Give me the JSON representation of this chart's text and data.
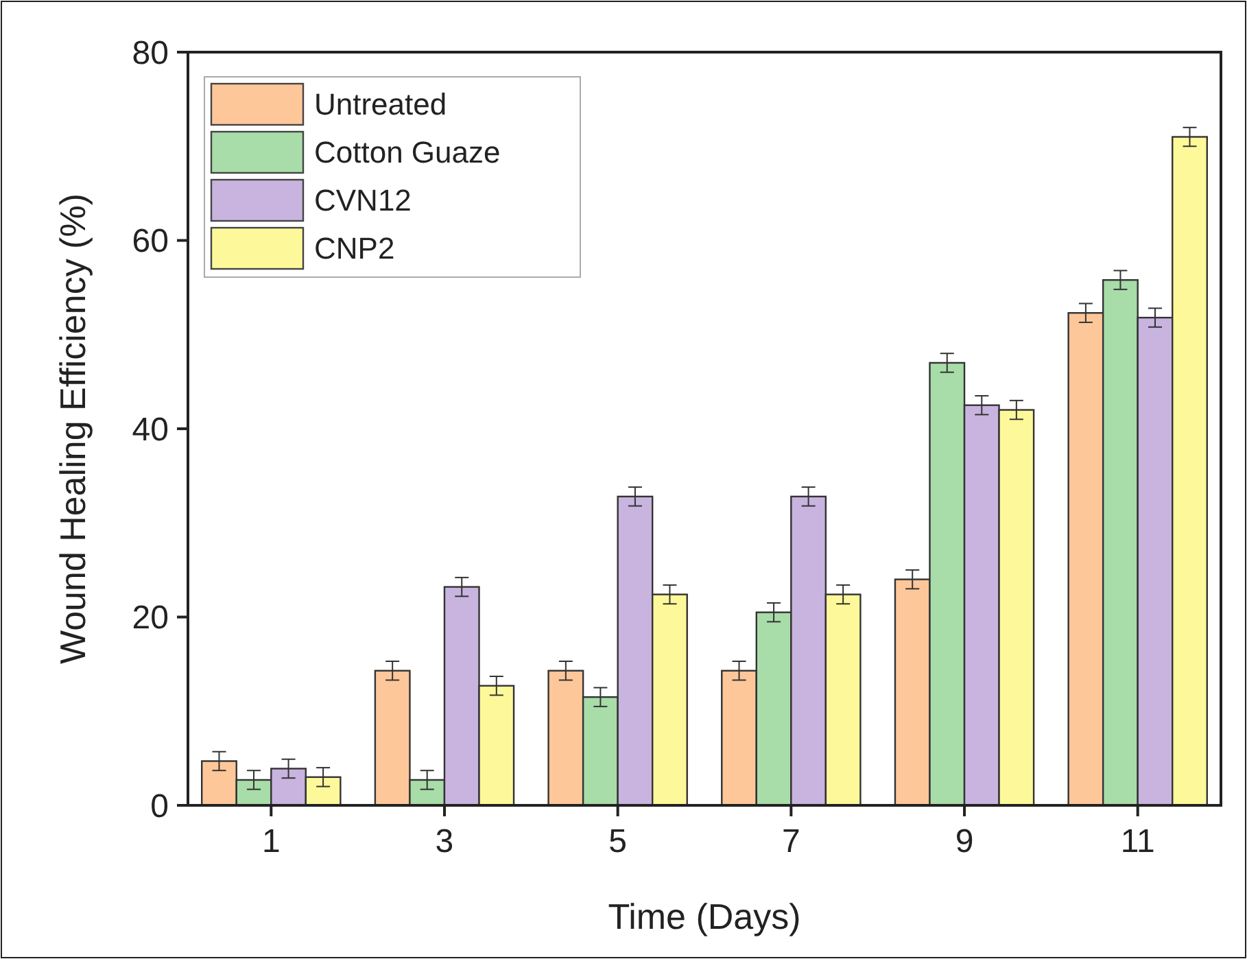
{
  "chart_data": {
    "type": "bar",
    "xlabel": "Time (Days)",
    "ylabel": "Wound Healing Efficiency (%)",
    "categories": [
      "1",
      "3",
      "5",
      "7",
      "9",
      "11"
    ],
    "series": [
      {
        "name": "Untreated",
        "color": "#fdc79a",
        "values": [
          4.7,
          14.3,
          14.3,
          14.3,
          24,
          52.3
        ],
        "errors": [
          1,
          1,
          1,
          1,
          1,
          1
        ]
      },
      {
        "name": "Cotton Guaze",
        "color": "#a8dca8",
        "values": [
          2.7,
          2.7,
          11.5,
          20.5,
          47,
          55.8
        ],
        "errors": [
          1,
          1,
          1,
          1,
          1,
          1
        ]
      },
      {
        "name": "CVN12",
        "color": "#c8b4df",
        "values": [
          3.9,
          23.2,
          32.8,
          32.8,
          42.5,
          51.8
        ],
        "errors": [
          1,
          1,
          1,
          1,
          1,
          1
        ]
      },
      {
        "name": "CNP2",
        "color": "#fdf99a",
        "values": [
          3,
          12.7,
          22.4,
          22.4,
          42,
          71
        ],
        "errors": [
          1,
          1,
          1,
          1,
          1,
          1
        ]
      }
    ],
    "ylim": [
      0,
      80
    ],
    "yticks": [
      0,
      20,
      40,
      60,
      80
    ],
    "legend": "top left"
  }
}
